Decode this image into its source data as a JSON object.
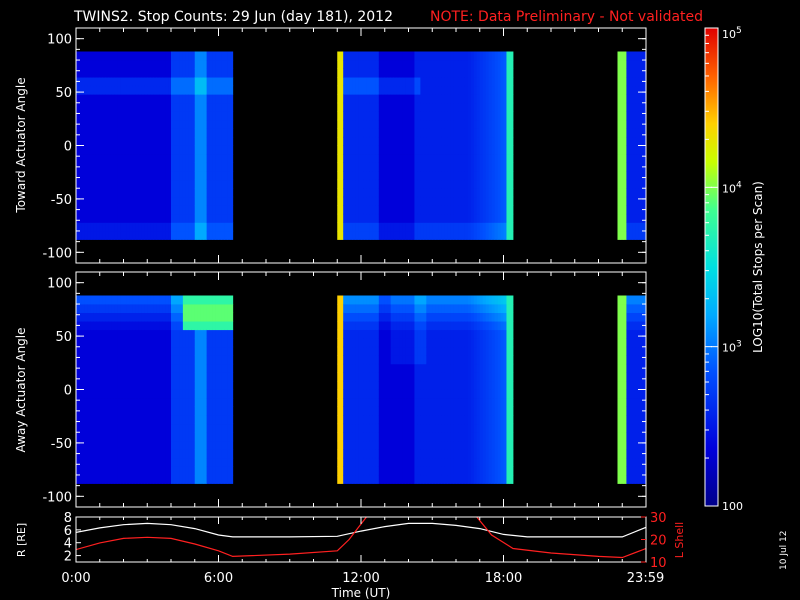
{
  "title": {
    "main": "TWINS2. Stop Counts: 29 Jun (day 181), 2012",
    "note": "NOTE: Data Preliminary - Not validated",
    "note_color": "#ff2020"
  },
  "footer_date": "10 Jul 12",
  "chart_data": [
    {
      "type": "heatmap",
      "name": "toward",
      "ylabel": "Toward Actuator Angle",
      "ylim": [
        -110,
        110
      ],
      "yticks": [
        100,
        50,
        0,
        -50,
        -100
      ],
      "ytick_labels": [
        "100",
        "50",
        "0",
        "-50",
        "-100"
      ],
      "xlim_hours": [
        0,
        24
      ],
      "data_angle_range": [
        -88,
        88
      ],
      "segments": [
        {
          "start": 0.0,
          "end": 6.6
        },
        {
          "start": 11.0,
          "end": 18.4
        },
        {
          "start": 22.8,
          "end": 24.0
        }
      ],
      "hot_bands": [
        {
          "start": 11.05,
          "end": 11.3,
          "level": 4.3
        },
        {
          "start": 18.15,
          "end": 18.4,
          "level": 3.7
        },
        {
          "start": 22.8,
          "end": 23.2,
          "level": 4.0
        }
      ]
    },
    {
      "type": "heatmap",
      "name": "away",
      "ylabel": "Away Actuator Angle",
      "ylim": [
        -110,
        110
      ],
      "yticks": [
        100,
        50,
        0,
        -50,
        -100
      ],
      "ytick_labels": [
        "100",
        "50",
        "0",
        "-50",
        "-100"
      ],
      "xlim_hours": [
        0,
        24
      ],
      "data_angle_range": [
        -88,
        88
      ],
      "segments": [
        {
          "start": 0.0,
          "end": 6.6
        },
        {
          "start": 11.0,
          "end": 18.4
        },
        {
          "start": 22.8,
          "end": 24.0
        }
      ],
      "hot_bands": [
        {
          "start": 11.05,
          "end": 11.3,
          "level": 4.4
        },
        {
          "start": 18.15,
          "end": 18.4,
          "level": 3.7
        },
        {
          "start": 22.8,
          "end": 23.2,
          "level": 4.0
        }
      ],
      "hot_spot": {
        "hours": [
          4.5,
          6.6
        ],
        "angle": [
          60,
          85
        ],
        "level": 4.0
      }
    },
    {
      "type": "line",
      "name": "orbit",
      "ylabel_left": "R [RE]",
      "ylabel_right": "L Shell",
      "ylim_left": [
        1,
        8
      ],
      "yticks_left": [
        "2",
        "4",
        "6",
        "8"
      ],
      "ylim_right": [
        10,
        30
      ],
      "yticks_right": [
        "10",
        "20",
        "30"
      ],
      "xlabel": "Time (UT)",
      "xticks": [
        {
          "h": 0,
          "label": "0:00"
        },
        {
          "h": 6,
          "label": "6:00"
        },
        {
          "h": 12,
          "label": "12:00"
        },
        {
          "h": 18,
          "label": "18:00"
        },
        {
          "h": 23.98,
          "label": "23:59"
        }
      ],
      "series": [
        {
          "color": "#ffffff",
          "axis": "left",
          "x": [
            0,
            1,
            2,
            3,
            4,
            5,
            6,
            6.6,
            9,
            11,
            12,
            13,
            14,
            15,
            16,
            17,
            18,
            19,
            20,
            21,
            22,
            23,
            24
          ],
          "y": [
            5.6,
            6.3,
            6.8,
            7.0,
            6.8,
            6.2,
            5.2,
            4.9,
            4.9,
            5.0,
            5.8,
            6.5,
            7.0,
            7.0,
            6.7,
            6.2,
            5.3,
            4.9,
            4.9,
            4.9,
            4.9,
            4.9,
            6.4
          ]
        },
        {
          "color": "#ff2020",
          "axis": "right",
          "x": [
            0,
            1,
            2,
            3,
            4,
            5,
            6,
            6.6,
            9,
            11,
            11.5,
            12.3,
            16.8,
            17.5,
            18.4,
            20,
            22,
            23,
            24
          ],
          "y": [
            15.5,
            18.5,
            20.5,
            21.0,
            20.5,
            18.0,
            15.0,
            12.5,
            13.5,
            15.0,
            20.0,
            31.0,
            31.0,
            22.0,
            16.0,
            14.0,
            12.5,
            12.0,
            16.0
          ]
        }
      ]
    }
  ],
  "colorbar": {
    "label": "LOG10(Total Stops per Scan)",
    "ticks": [
      "100",
      "10^3",
      "10^4",
      "10^5"
    ],
    "tick_values": [
      2,
      3,
      4,
      5
    ],
    "range": [
      2,
      5
    ]
  }
}
